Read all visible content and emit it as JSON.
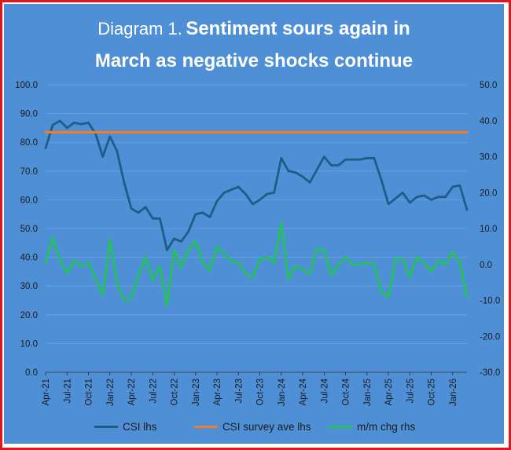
{
  "title": {
    "prefix": "Diagram 1.",
    "bold_line1": "Sentiment sours again  in",
    "bold_line2": "March as negative shocks continue"
  },
  "chart_data": {
    "type": "line",
    "title": "Diagram 1. Sentiment sours again in March as negative shocks continue",
    "xlabel": "",
    "ylabel": "",
    "ylim": [
      0,
      100
    ],
    "y2lim": [
      -30,
      50
    ],
    "y_ticks": [
      "0.0",
      "10.0",
      "20.0",
      "30.0",
      "40.0",
      "50.0",
      "60.0",
      "70.0",
      "80.0",
      "90.0",
      "100.0"
    ],
    "y2_ticks": [
      "-30.0",
      "-20.0",
      "-10.0",
      "0.0",
      "10.0",
      "20.0",
      "30.0",
      "40.0",
      "50.0"
    ],
    "x_tick_labels": [
      "Apr-21",
      "Jul-21",
      "Oct-21",
      "Jan-22",
      "Apr-22",
      "Jul-22",
      "Oct-22",
      "Jan-23",
      "Apr-23",
      "Jul-23",
      "Oct-23",
      "Jan-24",
      "Apr-24",
      "Jul-24",
      "Oct-24",
      "Jan-25",
      "Apr-25",
      "Jul-25",
      "Oct-25",
      "Jan-26"
    ],
    "months": [
      "Apr-21",
      "May-21",
      "Jun-21",
      "Jul-21",
      "Aug-21",
      "Sep-21",
      "Oct-21",
      "Nov-21",
      "Dec-21",
      "Jan-22",
      "Feb-22",
      "Mar-22",
      "Apr-22",
      "May-22",
      "Jun-22",
      "Jul-22",
      "Aug-22",
      "Sep-22",
      "Oct-22",
      "Nov-22",
      "Dec-22",
      "Jan-23",
      "Feb-23",
      "Mar-23",
      "Apr-23",
      "May-23",
      "Jun-23",
      "Jul-23",
      "Aug-23",
      "Sep-23",
      "Oct-23",
      "Nov-23",
      "Dec-23",
      "Jan-24",
      "Feb-24",
      "Mar-24",
      "Apr-24",
      "May-24",
      "Jun-24",
      "Jul-24",
      "Aug-24",
      "Sep-24",
      "Oct-24",
      "Nov-24",
      "Dec-24",
      "Jan-25",
      "Feb-25",
      "Mar-25",
      "Apr-25",
      "May-25",
      "Jun-25",
      "Jul-25",
      "Aug-25",
      "Sep-25",
      "Oct-25",
      "Nov-25",
      "Dec-25",
      "Jan-26",
      "Feb-26",
      "Mar-26"
    ],
    "series": [
      {
        "name": "CSI lhs",
        "axis": "left",
        "color": "#1f5c86",
        "values": [
          78.0,
          86.0,
          87.5,
          85.0,
          86.8,
          86.3,
          86.8,
          83.0,
          75.0,
          82.0,
          77.0,
          66.0,
          57.0,
          55.5,
          57.5,
          53.5,
          53.5,
          42.5,
          46.5,
          45.5,
          49.0,
          55.0,
          55.5,
          54.0,
          59.5,
          62.5,
          63.5,
          64.5,
          62.0,
          58.5,
          60.0,
          62.0,
          62.5,
          74.5,
          70.0,
          69.5,
          68.0,
          66.0,
          70.5,
          75.0,
          72.0,
          72.0,
          74.0,
          74.0,
          74.0,
          74.5,
          74.5,
          67.0,
          58.5,
          60.5,
          62.5,
          59.0,
          61.0,
          61.5,
          60.0,
          61.0,
          61.0,
          64.5,
          65.0,
          56.5
        ]
      },
      {
        "name": "CSI survey ave lhs",
        "axis": "left",
        "color": "#ef7d2d",
        "values": [
          83.5
        ]
      },
      {
        "name": "m/m chg rhs",
        "axis": "right",
        "color": "#21c35a",
        "values": [
          0.5,
          7.5,
          1.5,
          -2.5,
          1.0,
          -0.5,
          0.5,
          -4.0,
          -8.5,
          7.0,
          -5.0,
          -10.0,
          -9.5,
          -3.0,
          2.0,
          -4.5,
          -0.5,
          -11.5,
          4.0,
          -1.0,
          4.0,
          6.5,
          0.5,
          -1.5,
          5.0,
          3.0,
          1.0,
          0.5,
          -2.5,
          -3.5,
          1.5,
          2.0,
          0.5,
          11.5,
          -4.0,
          -0.5,
          -1.5,
          -2.5,
          4.5,
          4.0,
          -3.0,
          0.0,
          2.0,
          0.0,
          0.0,
          0.5,
          0.0,
          -7.5,
          -9.0,
          1.5,
          1.5,
          -3.5,
          2.0,
          0.5,
          -2.0,
          1.0,
          0.0,
          3.5,
          0.5,
          -9.0
        ]
      }
    ],
    "legend": "bottom"
  },
  "legend_items": [
    "CSI lhs",
    "CSI survey ave lhs",
    "m/m chg rhs"
  ]
}
